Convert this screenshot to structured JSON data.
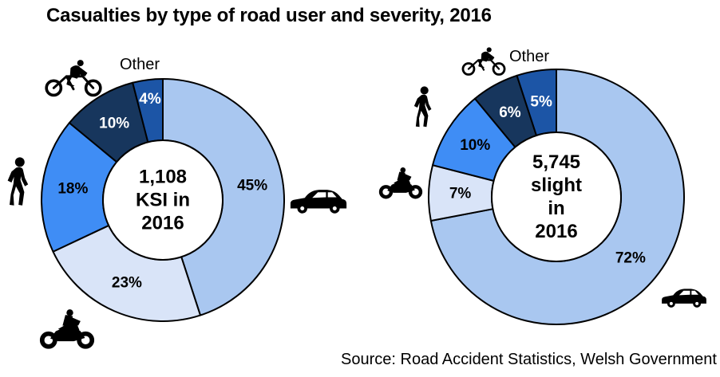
{
  "title": "Casualties by type of road user and severity, 2016",
  "source": "Source: Road Accident Statistics, Welsh Government",
  "colors": {
    "car": "#A9C7F0",
    "motorcycle": "#D9E4F8",
    "pedestrian": "#3F8DF5",
    "cyclist": "#17365D",
    "other": "#1C55A6",
    "outline": "#000000",
    "background": "#FFFFFF"
  },
  "chart_data": [
    {
      "type": "pie",
      "variant": "donut",
      "title": "KSI casualties 2016",
      "center_lines": [
        "1,108",
        "KSI in",
        "2016"
      ],
      "center_text": "1,108 KSI in 2016",
      "other_callout": "Other",
      "start_angle": "12-o-clock, clockwise",
      "slices": [
        {
          "category": "Car",
          "value": 45,
          "label": "45%",
          "color": "#A9C7F0",
          "label_color": "#000000",
          "icon": "car-icon"
        },
        {
          "category": "Motorcycle",
          "value": 23,
          "label": "23%",
          "color": "#D9E4F8",
          "label_color": "#000000",
          "icon": "motorcycle-icon"
        },
        {
          "category": "Pedestrian",
          "value": 18,
          "label": "18%",
          "color": "#3F8DF5",
          "label_color": "#000000",
          "icon": "pedestrian-icon"
        },
        {
          "category": "Cyclist",
          "value": 10,
          "label": "10%",
          "color": "#17365D",
          "label_color": "#FFFFFF",
          "icon": "bicycle-icon"
        },
        {
          "category": "Other",
          "value": 4,
          "label": "4%",
          "color": "#1C55A6",
          "label_color": "#FFFFFF",
          "icon": "none"
        }
      ]
    },
    {
      "type": "pie",
      "variant": "donut",
      "title": "Slight casualties 2016",
      "center_lines": [
        "5,745",
        "slight",
        "in",
        "2016"
      ],
      "center_text": "5,745 slight in 2016",
      "other_callout": "Other",
      "start_angle": "12-o-clock, clockwise",
      "slices": [
        {
          "category": "Car",
          "value": 72,
          "label": "72%",
          "color": "#A9C7F0",
          "label_color": "#000000",
          "icon": "car-icon"
        },
        {
          "category": "Motorcycle",
          "value": 7,
          "label": "7%",
          "color": "#D9E4F8",
          "label_color": "#000000",
          "icon": "motorcycle-icon"
        },
        {
          "category": "Pedestrian",
          "value": 10,
          "label": "10%",
          "color": "#3F8DF5",
          "label_color": "#000000",
          "icon": "pedestrian-icon"
        },
        {
          "category": "Cyclist",
          "value": 6,
          "label": "6%",
          "color": "#17365D",
          "label_color": "#FFFFFF",
          "icon": "bicycle-icon"
        },
        {
          "category": "Other",
          "value": 5,
          "label": "5%",
          "color": "#1C55A6",
          "label_color": "#FFFFFF",
          "icon": "none"
        }
      ]
    }
  ]
}
